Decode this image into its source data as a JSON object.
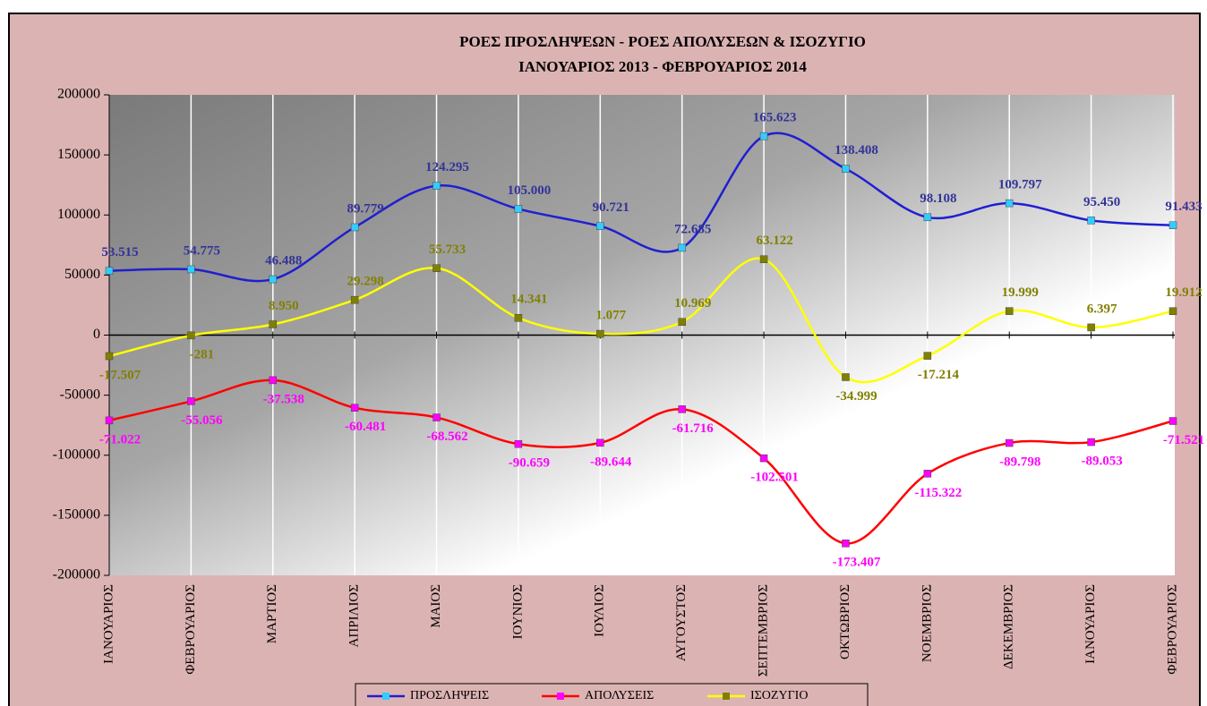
{
  "chart_data": {
    "type": "line",
    "title": "ΡΟΕΣ ΠΡΟΣΛΗΨΕΩΝ  -  ΡΟΕΣ ΑΠΟΛΥΣΕΩΝ  & ΙΣΟΖΥΓΙΟ",
    "subtitle": "ΙΑΝΟΥΑΡΙΟΣ 2013   -  ΦΕΒΡΟΥΑΡΙΟΣ  2014",
    "categories": [
      "ΙΑΝΟΥΑΡΙΟΣ",
      "ΦΕΒΡΟΥΑΡΙΟΣ",
      "ΜΑΡΤΙΟΣ",
      "ΑΠΡΙΛΙΟΣ",
      "ΜΑΙΟΣ",
      "ΙΟΥΝΙΟΣ",
      "ΙΟΥΛΙΟΣ",
      "ΑΥΓΟΥΣΤΟΣ",
      "ΣΕΠΤΕΜΒΡΙΟΣ",
      "ΟΚΤΩΒΡΙΟΣ",
      "ΝΟΕΜΒΡΙΟΣ",
      "ΔΕΚΕΜΒΡΙΟΣ",
      "ΙΑΝΟΥΑΡΙΟΣ",
      "ΦΕΒΡΟΥΑΡΙΟΣ"
    ],
    "series": [
      {
        "name": "ΠΡΟΣΛΗΨΕΙΣ",
        "color": "#1f1fd0",
        "marker_color": "#33ccff",
        "label_color": "#333399",
        "values": [
          53515,
          54775,
          46488,
          89779,
          124295,
          105000,
          90721,
          72685,
          165623,
          138408,
          98108,
          109797,
          95450,
          91433
        ],
        "value_labels": [
          "53.515",
          "54.775",
          "46.488",
          "89.779",
          "124.295",
          "105.000",
          "90.721",
          "72.685",
          "165.623",
          "138.408",
          "98.108",
          "109.797",
          "95.450",
          "91.433"
        ]
      },
      {
        "name": "ΑΠΟΛΥΣΕΙΣ",
        "color": "#ff0000",
        "marker_color": "#ff00ff",
        "label_color": "#ff00ff",
        "values": [
          -71022,
          -55056,
          -37538,
          -60481,
          -68562,
          -90659,
          -89644,
          -61716,
          -102501,
          -173407,
          -115322,
          -89798,
          -89053,
          -71521
        ],
        "value_labels": [
          "-71.022",
          "-55.056",
          "-37.538",
          "-60.481",
          "-68.562",
          "-90.659",
          "-89.644",
          "-61.716",
          "-102.501",
          "-173.407",
          "-115.322",
          "-89.798",
          "-89.053",
          "-71.521"
        ]
      },
      {
        "name": "ΙΣΟΖΥΓΙΟ",
        "color": "#ffff00",
        "marker_color": "#808000",
        "label_color": "#808000",
        "values": [
          -17507,
          -281,
          8950,
          29298,
          55733,
          14341,
          1077,
          10969,
          63122,
          -34999,
          -17214,
          19999,
          6397,
          19912
        ],
        "value_labels": [
          "-17.507",
          "-281",
          "8.950",
          "29.298",
          "55.733",
          "14.341",
          "1.077",
          "10.969",
          "63.122",
          "-34.999",
          "-17.214",
          "19.999",
          "6.397",
          "19.912"
        ]
      }
    ],
    "ylim": [
      -200000,
      200000
    ],
    "yticks": [
      200000,
      150000,
      100000,
      50000,
      0,
      -50000,
      -100000,
      -150000,
      -200000
    ],
    "legend": "bottom"
  }
}
